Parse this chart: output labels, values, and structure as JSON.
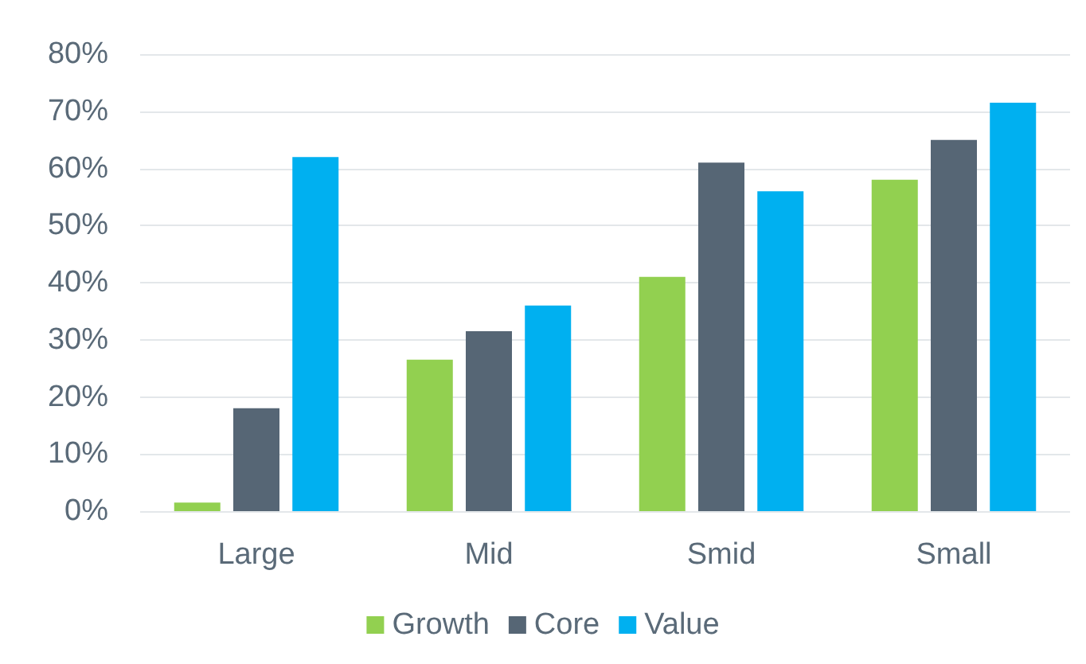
{
  "chart_data": {
    "type": "bar",
    "categories": [
      "Large",
      "Mid",
      "Smid",
      "Small"
    ],
    "series": [
      {
        "name": "Growth",
        "color": "#92d050",
        "values": [
          1.5,
          26.5,
          41,
          58
        ]
      },
      {
        "name": "Core",
        "color": "#566675",
        "values": [
          18,
          31.5,
          61,
          65
        ]
      },
      {
        "name": "Value",
        "color": "#00b0f0",
        "values": [
          62,
          36,
          56,
          71.5
        ]
      }
    ],
    "ylim": [
      0,
      80
    ],
    "yticks": [
      {
        "value": 0,
        "label": "0%"
      },
      {
        "value": 10,
        "label": "10%"
      },
      {
        "value": 20,
        "label": "20%"
      },
      {
        "value": 30,
        "label": "30%"
      },
      {
        "value": 40,
        "label": "40%"
      },
      {
        "value": 50,
        "label": "50%"
      },
      {
        "value": 60,
        "label": "60%"
      },
      {
        "value": 70,
        "label": "70%"
      },
      {
        "value": 80,
        "label": "80%"
      }
    ],
    "grid": true,
    "legend": "bottom"
  }
}
